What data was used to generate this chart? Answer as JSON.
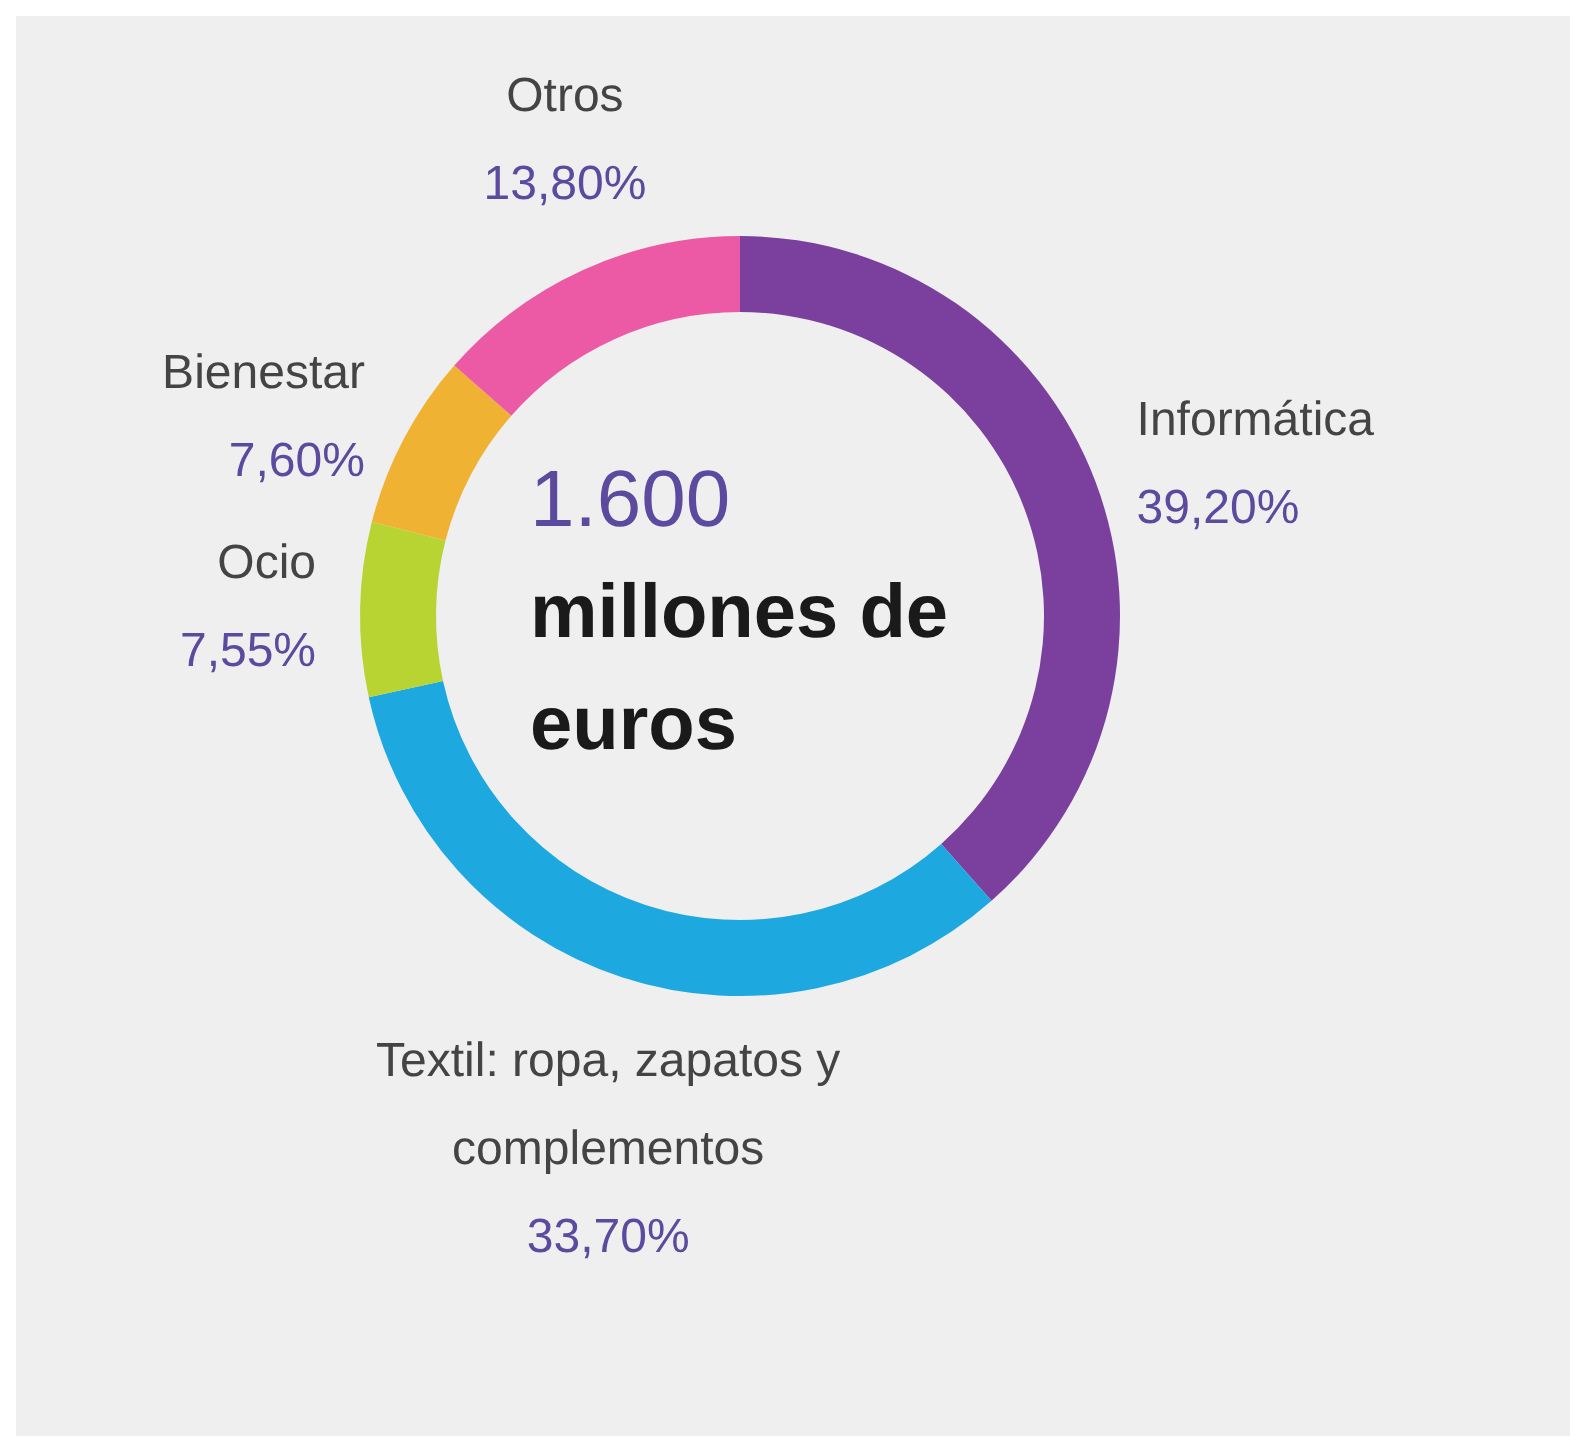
{
  "chart_data": {
    "type": "donut",
    "categories": [
      "Informática",
      "Textil: ropa, zapatos y complementos",
      "Ocio",
      "Bienestar",
      "Otros"
    ],
    "values": [
      39.2,
      33.7,
      7.55,
      7.6,
      13.8
    ],
    "colors": [
      "#7b3f9e",
      "#1ea8e0",
      "#b8d433",
      "#f0b233",
      "#ec5aa6"
    ],
    "value_labels": [
      "39,20%",
      "33,70%",
      "7,55%",
      "7,60%",
      "13,80%"
    ],
    "annotations": [
      "1.600",
      "millones de euros"
    ]
  }
}
